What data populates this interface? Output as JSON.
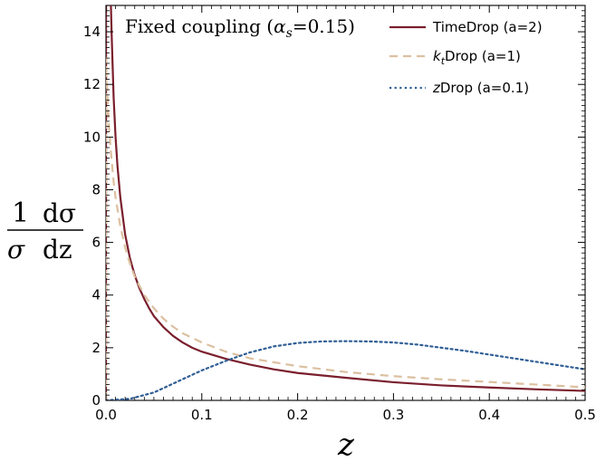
{
  "chart_data": {
    "type": "line",
    "title": "Fixed coupling",
    "annotation": {
      "prefix": "Fixed coupling (",
      "symbol": "α",
      "subscript": "s",
      "value_text": "=0.15)"
    },
    "xlabel": "z",
    "ylabel": {
      "numerator_left": "1",
      "numerator_right": "dσ",
      "denominator_left": "σ",
      "denominator_right": "dz"
    },
    "xlim": [
      0.0,
      0.5
    ],
    "ylim": [
      0,
      15
    ],
    "xticks": [
      0.0,
      0.1,
      0.2,
      0.3,
      0.4,
      0.5
    ],
    "xtick_labels": [
      "0.0",
      "0.1",
      "0.2",
      "0.3",
      "0.4",
      "0.5"
    ],
    "yticks": [
      0,
      2,
      4,
      6,
      8,
      10,
      12,
      14
    ],
    "ytick_labels": [
      "0",
      "2",
      "4",
      "6",
      "8",
      "10",
      "12",
      "14"
    ],
    "legend_position": "top-right",
    "grid": false,
    "series": [
      {
        "name": "TimeDrop (a=2)",
        "color": "#7a1f2d",
        "style": "solid",
        "x": [
          0.0,
          0.0001,
          0.001,
          0.002,
          0.003,
          0.004,
          0.005,
          0.006,
          0.008,
          0.01,
          0.012,
          0.015,
          0.02,
          0.025,
          0.03,
          0.035,
          0.04,
          0.045,
          0.05,
          0.06,
          0.07,
          0.08,
          0.09,
          0.1,
          0.125,
          0.15,
          0.175,
          0.2,
          0.25,
          0.3,
          0.35,
          0.4,
          0.45,
          0.5
        ],
        "y": [
          0,
          16.0,
          16.0,
          16.0,
          16.0,
          16.0,
          15.2,
          13.8,
          11.5,
          10.0,
          8.9,
          7.7,
          6.3,
          5.4,
          4.75,
          4.25,
          3.85,
          3.5,
          3.2,
          2.78,
          2.45,
          2.2,
          2.0,
          1.85,
          1.58,
          1.36,
          1.18,
          1.04,
          0.86,
          0.69,
          0.57,
          0.49,
          0.42,
          0.36
        ]
      },
      {
        "name": "ktDrop (a=1)",
        "label_parts": {
          "k": "k",
          "sub": "t",
          "rest": "Drop (a=1)"
        },
        "color": "#dcc0a0",
        "style": "dashed",
        "x": [
          0.0,
          0.0002,
          0.0005,
          0.001,
          0.002,
          0.003,
          0.005,
          0.008,
          0.01,
          0.015,
          0.02,
          0.025,
          0.03,
          0.04,
          0.05,
          0.06,
          0.07,
          0.08,
          0.1,
          0.125,
          0.15,
          0.2,
          0.25,
          0.3,
          0.35,
          0.4,
          0.45,
          0.5
        ],
        "y": [
          0,
          13.0,
          12.5,
          12.0,
          11.2,
          10.5,
          9.5,
          8.3,
          7.7,
          6.6,
          5.8,
          5.2,
          4.7,
          4.0,
          3.5,
          3.1,
          2.8,
          2.55,
          2.2,
          1.85,
          1.6,
          1.3,
          1.08,
          0.92,
          0.8,
          0.7,
          0.6,
          0.5
        ]
      },
      {
        "name": "zDrop (a=0.1)",
        "label_parts": {
          "k": "z",
          "sub": "",
          "rest": "Drop (a=0.1)"
        },
        "color": "#2f5e95",
        "style": "dotted",
        "x": [
          0.0,
          0.025,
          0.05,
          0.075,
          0.1,
          0.125,
          0.15,
          0.175,
          0.2,
          0.225,
          0.25,
          0.275,
          0.3,
          0.325,
          0.35,
          0.375,
          0.4,
          0.425,
          0.45,
          0.475,
          0.5
        ],
        "y": [
          0.0,
          0.06,
          0.3,
          0.72,
          1.14,
          1.5,
          1.82,
          2.05,
          2.18,
          2.24,
          2.25,
          2.24,
          2.2,
          2.12,
          2.0,
          1.88,
          1.74,
          1.6,
          1.46,
          1.32,
          1.18
        ]
      }
    ]
  }
}
